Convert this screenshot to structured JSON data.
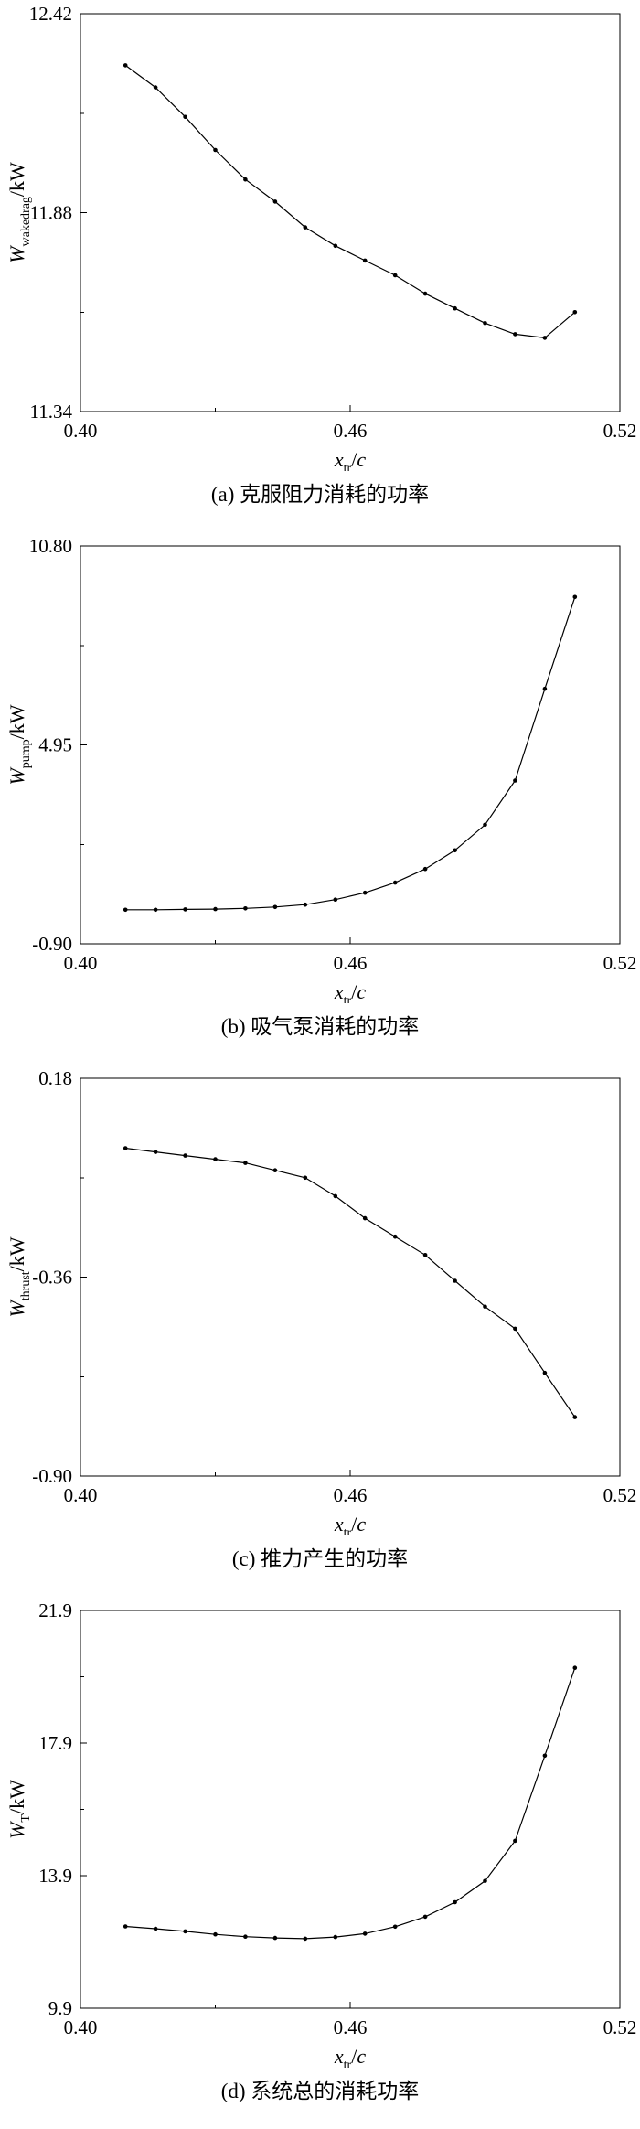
{
  "figure": {
    "background": "#ffffff",
    "line_color": "#000000",
    "marker": "filled-circle"
  },
  "chart_data": [
    {
      "type": "line",
      "panel": "a",
      "caption": "(a) 克服阻力消耗的功率",
      "ylabel": {
        "var": "W",
        "sub": "wakedrag",
        "unit": "kW",
        "unit_italic": false
      },
      "xlabel": {
        "var": "x",
        "sub": "tr",
        "unit": "c",
        "unit_italic": true
      },
      "xlim": [
        0.4,
        0.52
      ],
      "ylim": [
        11.34,
        12.42
      ],
      "xticks": [
        0.4,
        0.46,
        0.52
      ],
      "xtick_labels": [
        "0.40",
        "0.46",
        "0.52"
      ],
      "yticks": [
        11.34,
        11.88,
        12.42
      ],
      "ytick_labels": [
        "11.34",
        "11.88",
        "12.42"
      ],
      "grid": false,
      "legend": "none",
      "x": [
        0.41,
        0.4167,
        0.4233,
        0.43,
        0.4367,
        0.4433,
        0.45,
        0.4567,
        0.4633,
        0.47,
        0.4767,
        0.4833,
        0.49,
        0.4967,
        0.5033,
        0.51
      ],
      "y": [
        12.28,
        12.22,
        12.14,
        12.05,
        11.97,
        11.91,
        11.84,
        11.79,
        11.75,
        11.71,
        11.66,
        11.62,
        11.58,
        11.55,
        11.54,
        11.61
      ]
    },
    {
      "type": "line",
      "panel": "b",
      "caption": "(b) 吸气泵消耗的功率",
      "ylabel": {
        "var": "W",
        "sub": "pump",
        "unit": "kW",
        "unit_italic": false
      },
      "xlabel": {
        "var": "x",
        "sub": "tr",
        "unit": "c",
        "unit_italic": true
      },
      "xlim": [
        0.4,
        0.52
      ],
      "ylim": [
        -0.9,
        10.8
      ],
      "xticks": [
        0.4,
        0.46,
        0.52
      ],
      "xtick_labels": [
        "0.40",
        "0.46",
        "0.52"
      ],
      "yticks": [
        -0.9,
        4.95,
        10.8
      ],
      "ytick_labels": [
        "-0.90",
        "4.95",
        "10.80"
      ],
      "grid": false,
      "legend": "none",
      "x": [
        0.41,
        0.4167,
        0.4233,
        0.43,
        0.4367,
        0.4433,
        0.45,
        0.4567,
        0.4633,
        0.47,
        0.4767,
        0.4833,
        0.49,
        0.4967,
        0.5033,
        0.51
      ],
      "y": [
        0.1,
        0.1,
        0.11,
        0.12,
        0.14,
        0.18,
        0.25,
        0.4,
        0.6,
        0.9,
        1.3,
        1.85,
        2.6,
        3.9,
        6.6,
        9.3
      ]
    },
    {
      "type": "line",
      "panel": "c",
      "caption": "(c) 推力产生的功率",
      "ylabel": {
        "var": "W",
        "sub": "thrust",
        "unit": "kW",
        "unit_italic": false
      },
      "xlabel": {
        "var": "x",
        "sub": "tr",
        "unit": "c",
        "unit_italic": true
      },
      "xlim": [
        0.4,
        0.52
      ],
      "ylim": [
        -0.9,
        0.18
      ],
      "xticks": [
        0.4,
        0.46,
        0.52
      ],
      "xtick_labels": [
        "0.40",
        "0.46",
        "0.52"
      ],
      "yticks": [
        -0.9,
        -0.36,
        0.18
      ],
      "ytick_labels": [
        "-0.90",
        "-0.36",
        "0.18"
      ],
      "grid": false,
      "legend": "none",
      "x": [
        0.41,
        0.4167,
        0.4233,
        0.43,
        0.4367,
        0.4433,
        0.45,
        0.4567,
        0.4633,
        0.47,
        0.4767,
        0.4833,
        0.49,
        0.4967,
        0.5033,
        0.51
      ],
      "y": [
        -0.01,
        -0.02,
        -0.03,
        -0.04,
        -0.05,
        -0.07,
        -0.09,
        -0.14,
        -0.2,
        -0.25,
        -0.3,
        -0.37,
        -0.44,
        -0.5,
        -0.62,
        -0.74
      ]
    },
    {
      "type": "line",
      "panel": "d",
      "caption": "(d) 系统总的消耗功率",
      "ylabel": {
        "var": "W",
        "sub": "T",
        "unit": "kW",
        "unit_italic": false
      },
      "xlabel": {
        "var": "x",
        "sub": "tr",
        "unit": "c",
        "unit_italic": true
      },
      "xlim": [
        0.4,
        0.52
      ],
      "ylim": [
        9.9,
        21.9
      ],
      "xticks": [
        0.4,
        0.46,
        0.52
      ],
      "xtick_labels": [
        "0.40",
        "0.46",
        "0.52"
      ],
      "yticks": [
        9.9,
        13.9,
        17.9,
        21.9
      ],
      "ytick_labels": [
        "9.9",
        "13.9",
        "17.9",
        "21.9"
      ],
      "grid": false,
      "legend": "none",
      "x": [
        0.41,
        0.4167,
        0.4233,
        0.43,
        0.4367,
        0.4433,
        0.45,
        0.4567,
        0.4633,
        0.47,
        0.4767,
        0.4833,
        0.49,
        0.4967,
        0.5033,
        0.51
      ],
      "y": [
        12.37,
        12.3,
        12.22,
        12.13,
        12.06,
        12.02,
        12.0,
        12.05,
        12.15,
        12.36,
        12.66,
        13.1,
        13.74,
        14.95,
        17.52,
        20.17
      ]
    }
  ]
}
